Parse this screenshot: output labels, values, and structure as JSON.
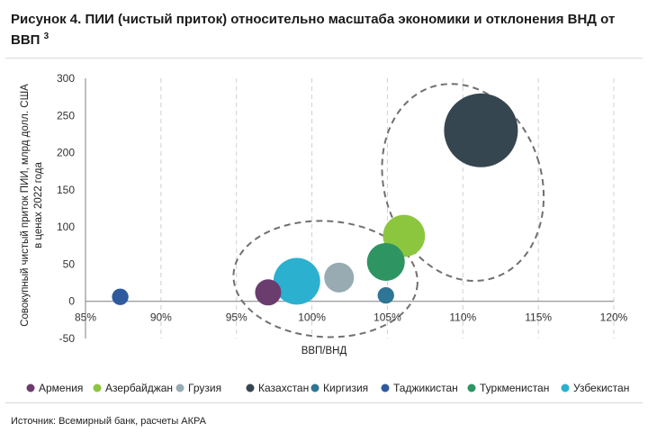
{
  "header": {
    "title": "Рисунок 4. ПИИ (чистый приток) относительно масштаба экономики и отклонения ВНД от ВВП",
    "footnote_mark": "3"
  },
  "chart_data": {
    "type": "scatter",
    "subtype": "bubble",
    "xlabel": "ВВП/ВНД",
    "ylabel_line1": "Совокупный чистый приток ПИИ, млрд долл. США",
    "ylabel_line2": "в ценах 2022 года",
    "xlim": [
      0.85,
      1.2
    ],
    "ylim": [
      -50,
      300
    ],
    "x_ticks": [
      0.85,
      0.9,
      0.95,
      1.0,
      1.05,
      1.1,
      1.15,
      1.2
    ],
    "x_tick_labels": [
      "85%",
      "90%",
      "95%",
      "100%",
      "105%",
      "110%",
      "115%",
      "120%"
    ],
    "y_ticks": [
      -50,
      0,
      50,
      100,
      150,
      200,
      250,
      300
    ],
    "y_tick_labels": [
      "-50",
      "0",
      "50",
      "100",
      "150",
      "200",
      "250",
      "300"
    ],
    "grid": "vertical dashed",
    "legend_position": "bottom",
    "series": [
      {
        "name": "Армения",
        "x": 0.971,
        "y": 12,
        "size": 1.0,
        "color": "#6b3d6e"
      },
      {
        "name": "Азербайджан",
        "x": 1.061,
        "y": 88,
        "size": 2.6,
        "color": "#8cc63f"
      },
      {
        "name": "Грузия",
        "x": 1.018,
        "y": 32,
        "size": 1.3,
        "color": "#98aab2"
      },
      {
        "name": "Казахстан",
        "x": 1.112,
        "y": 230,
        "size": 8.0,
        "color": "#364650"
      },
      {
        "name": "Киргизия",
        "x": 1.049,
        "y": 8,
        "size": 0.4,
        "color": "#2f7596"
      },
      {
        "name": "Таджикистан",
        "x": 0.873,
        "y": 6,
        "size": 0.4,
        "color": "#2e5a9e"
      },
      {
        "name": "Туркменистан",
        "x": 1.049,
        "y": 53,
        "size": 2.1,
        "color": "#2e9462"
      },
      {
        "name": "Узбекистан",
        "x": 0.99,
        "y": 27,
        "size": 3.2,
        "color": "#2bb0cf"
      }
    ],
    "annotations": [
      {
        "shape": "dashed-ellipse",
        "cx": 1.1,
        "cy": 160,
        "rx_data": 0.052,
        "ry_data": 135,
        "rotate_deg": -18
      },
      {
        "shape": "dashed-ellipse",
        "cx": 1.009,
        "cy": 30,
        "rx_data": 0.061,
        "ry_data": 78,
        "rotate_deg": 3
      }
    ]
  },
  "footer": {
    "source": "Источник: Всемирный банк, расчеты АКРА"
  }
}
